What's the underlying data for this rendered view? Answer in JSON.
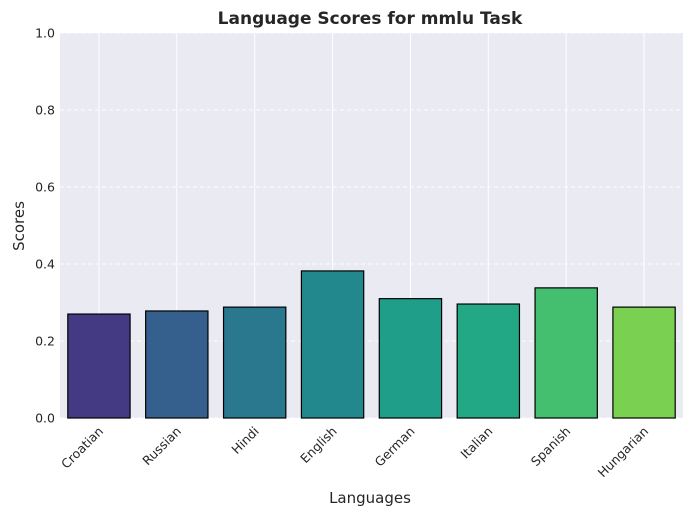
{
  "chart_data": {
    "type": "bar",
    "title": "Language Scores for mmlu Task",
    "xlabel": "Languages",
    "ylabel": "Scores",
    "categories": [
      "Croatian",
      "Russian",
      "Hindi",
      "English",
      "German",
      "Italian",
      "Spanish",
      "Hungarian"
    ],
    "values": [
      0.27,
      0.278,
      0.288,
      0.382,
      0.31,
      0.296,
      0.338,
      0.288
    ],
    "colors": [
      "#443983",
      "#355f8d",
      "#2a788e",
      "#23888e",
      "#1f9e89",
      "#22a884",
      "#44bf70",
      "#7ad151"
    ],
    "edge_color": "#000000",
    "ylim": [
      0,
      1.0
    ],
    "yticks": [
      "0.0",
      "0.2",
      "0.4",
      "0.6",
      "0.8",
      "1.0"
    ],
    "ytick_values": [
      0,
      0.2,
      0.4,
      0.6,
      0.8,
      1.0
    ],
    "grid": true,
    "background": "#eaeaf2"
  }
}
